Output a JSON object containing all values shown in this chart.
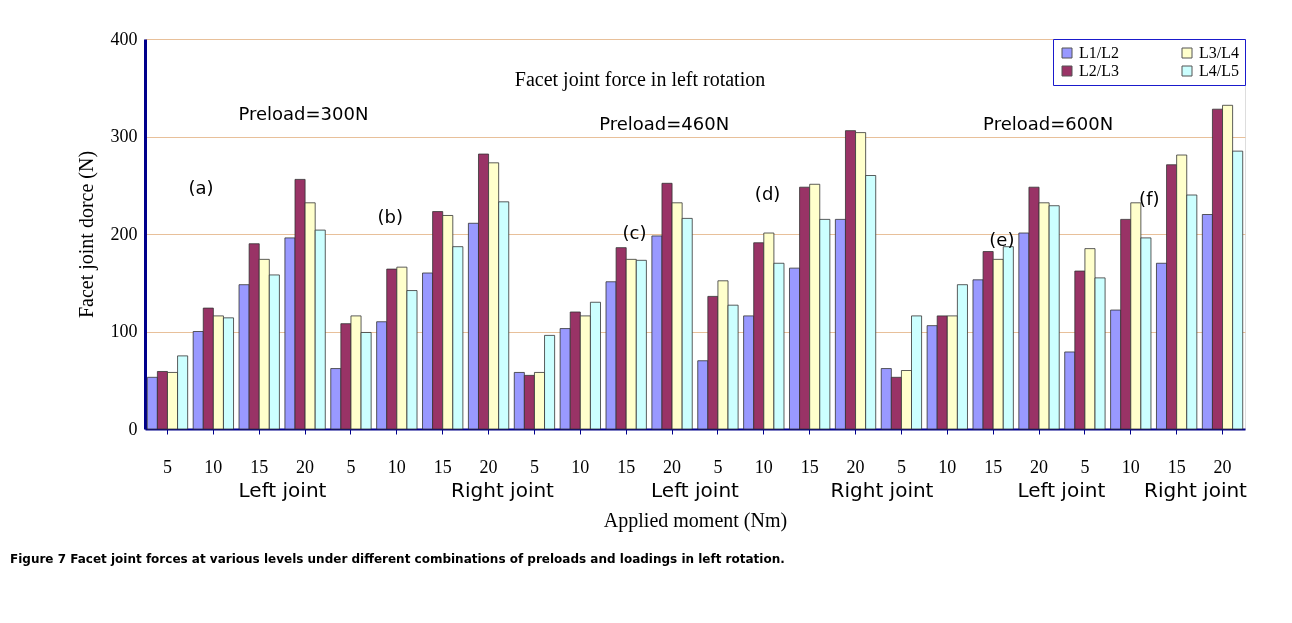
{
  "chart_data": {
    "type": "bar",
    "title": "Facet joint force in left rotation",
    "xlabel": "Applied moment (Nm)",
    "ylabel": "Facet joint dorce (N)",
    "categories": [
      "5",
      "10",
      "15",
      "20",
      "5",
      "10",
      "15",
      "20",
      "5",
      "10",
      "15",
      "20",
      "5",
      "10",
      "15",
      "20",
      "5",
      "10",
      "15",
      "20",
      "5",
      "10",
      "15",
      "20"
    ],
    "series": [
      {
        "name": "L1/L2",
        "color": "#9999ff",
        "values": [
          53,
          100,
          148,
          196,
          62,
          110,
          160,
          211,
          58,
          103,
          151,
          198,
          70,
          116,
          165,
          215,
          62,
          106,
          153,
          201,
          79,
          122,
          170,
          220
        ]
      },
      {
        "name": "L2/L3",
        "color": "#993366",
        "values": [
          59,
          124,
          190,
          256,
          108,
          164,
          223,
          282,
          55,
          120,
          186,
          252,
          136,
          191,
          248,
          306,
          53,
          116,
          182,
          248,
          162,
          215,
          271,
          328
        ]
      },
      {
        "name": "L3/L4",
        "color": "#ffffcc",
        "values": [
          58,
          116,
          174,
          232,
          116,
          166,
          219,
          273,
          58,
          116,
          174,
          232,
          152,
          201,
          251,
          304,
          60,
          116,
          174,
          232,
          185,
          232,
          281,
          332
        ]
      },
      {
        "name": "L4/L5",
        "color": "#ccffff",
        "values": [
          75,
          114,
          158,
          204,
          99,
          142,
          187,
          233,
          96,
          130,
          173,
          216,
          127,
          170,
          215,
          260,
          116,
          148,
          187,
          229,
          155,
          196,
          240,
          285
        ]
      }
    ],
    "ylim": [
      0,
      400
    ],
    "yticks": [
      0,
      100,
      200,
      300,
      400
    ],
    "grid": "y",
    "legend": "top right",
    "annotations": [
      "Preload=300N",
      "Preload=460N",
      "Preload=600N",
      "(a)",
      "(b)",
      "(c)",
      "(d)",
      "(e)",
      "(f)",
      "Left joint",
      "Right joint",
      "Left joint",
      "Right joint",
      "Left joint",
      "Right joint",
      "Figure 7 Facet joint forces at various levels under different combinations of preloads and loadings in left rotation."
    ]
  }
}
